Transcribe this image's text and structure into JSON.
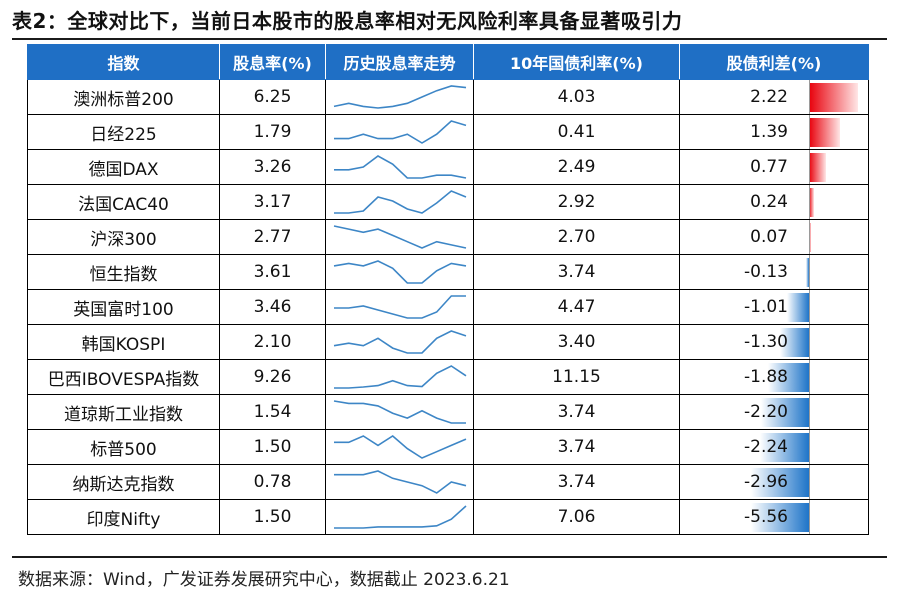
{
  "title": "表2：全球对比下，当前日本股市的股息率相对无风险利率具备显著吸引力",
  "columns": [
    "指数",
    "股息率(%)",
    "历史股息率走势",
    "10年国债利率(%)",
    "股债利差(%)"
  ],
  "rows": [
    {
      "name": "澳洲标普200",
      "dividend": "6.25",
      "bond": "4.03",
      "spread": "2.22",
      "spread_value": 2.22,
      "trend": [
        3,
        3.2,
        3,
        2.9,
        3,
        3.2,
        3.6,
        4,
        4.3,
        4.2
      ]
    },
    {
      "name": "日经225",
      "dividend": "1.79",
      "bond": "0.41",
      "spread": "1.39",
      "spread_value": 1.39,
      "trend": [
        1.6,
        1.6,
        1.7,
        1.6,
        1.6,
        1.7,
        1.5,
        1.7,
        2.0,
        1.9
      ]
    },
    {
      "name": "德国DAX",
      "dividend": "3.26",
      "bond": "2.49",
      "spread": "0.77",
      "spread_value": 0.77,
      "trend": [
        2.8,
        2.8,
        2.9,
        3.3,
        3.0,
        2.5,
        2.5,
        2.6,
        2.6,
        2.5
      ]
    },
    {
      "name": "法国CAC40",
      "dividend": "3.17",
      "bond": "2.92",
      "spread": "0.24",
      "spread_value": 0.24,
      "trend": [
        2.5,
        2.5,
        2.6,
        3.3,
        3.1,
        2.7,
        2.5,
        3.0,
        3.6,
        3.3
      ]
    },
    {
      "name": "沪深300",
      "dividend": "2.77",
      "bond": "2.70",
      "spread": "0.07",
      "spread_value": 0.07,
      "trend": [
        2.7,
        2.6,
        2.5,
        2.6,
        2.4,
        2.2,
        2.0,
        2.2,
        2.1,
        2.0
      ]
    },
    {
      "name": "恒生指数",
      "dividend": "3.61",
      "bond": "3.74",
      "spread": "-0.13",
      "spread_value": -0.13,
      "trend": [
        3.2,
        3.3,
        3.2,
        3.4,
        3.1,
        2.5,
        2.5,
        3.0,
        3.3,
        3.2
      ]
    },
    {
      "name": "英国富时100",
      "dividend": "3.46",
      "bond": "4.47",
      "spread": "-1.01",
      "spread_value": -1.01,
      "trend": [
        3.4,
        3.4,
        3.5,
        3.3,
        3.1,
        2.9,
        2.9,
        3.2,
        4.0,
        4.0
      ]
    },
    {
      "name": "韩国KOSPI",
      "dividend": "2.10",
      "bond": "3.40",
      "spread": "-1.30",
      "spread_value": -1.3,
      "trend": [
        1.6,
        1.7,
        1.6,
        1.9,
        1.5,
        1.3,
        1.3,
        1.9,
        2.2,
        2.0
      ]
    },
    {
      "name": "巴西IBOVESPA指数",
      "dividend": "9.26",
      "bond": "11.15",
      "spread": "-1.88",
      "spread_value": -1.88,
      "trend": [
        5,
        5,
        5.2,
        5.5,
        6.5,
        5.5,
        5.3,
        8,
        9.5,
        7.5
      ]
    },
    {
      "name": "道琼斯工业指数",
      "dividend": "1.54",
      "bond": "3.74",
      "spread": "-2.20",
      "spread_value": -2.2,
      "trend": [
        2.5,
        2.4,
        2.4,
        2.3,
        2.0,
        1.8,
        2.1,
        1.8,
        1.6,
        1.6
      ]
    },
    {
      "name": "标普500",
      "dividend": "1.50",
      "bond": "3.74",
      "spread": "-2.24",
      "spread_value": -2.24,
      "trend": [
        2.0,
        2.0,
        2.2,
        1.9,
        2.2,
        1.8,
        1.5,
        1.7,
        1.9,
        2.1
      ]
    },
    {
      "name": "纳斯达克指数",
      "dividend": "0.78",
      "bond": "3.74",
      "spread": "-2.96",
      "spread_value": -2.96,
      "trend": [
        1.0,
        1.0,
        1.0,
        1.1,
        0.9,
        0.8,
        0.7,
        0.5,
        0.8,
        0.7
      ]
    },
    {
      "name": "印度Nifty",
      "dividend": "1.50",
      "bond": "7.06",
      "spread": "-5.56",
      "spread_value": -5.56,
      "trend": [
        1.2,
        1.2,
        1.2,
        1.25,
        1.25,
        1.25,
        1.25,
        1.3,
        1.6,
        2.2
      ]
    }
  ],
  "source": "数据来源：Wind，广发证券发展研究中心，数据截止 2023.6.21",
  "colors": {
    "header": "#1f6fc5",
    "trend_line": "#3d86c6",
    "positive_bar": "#e8000b",
    "negative_bar": "#1e74c8"
  }
}
